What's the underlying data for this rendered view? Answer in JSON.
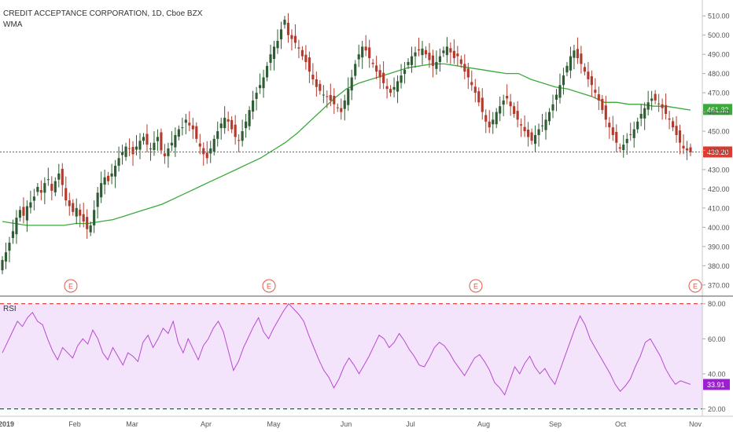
{
  "header": {
    "title": "CREDIT ACCEPTANCE CORPORATION, 1D, Cboe BZX",
    "indicator": "WMA"
  },
  "rsi_pane": {
    "label": "RSI"
  },
  "earnings_marker": "E",
  "colors": {
    "up": "#2e5d34",
    "down": "#b23b2e",
    "wma": "#3aaa3a",
    "rsi_line": "#b84ad3",
    "rsi_fill": "#f3e4fb",
    "last_price_line": "#e03a2e",
    "ob_os_line": "#e0312b",
    "os_line": "#1f4a3a",
    "earnings": "#e05a4a"
  },
  "chart_data": [
    {
      "type": "candlestick",
      "title": "CREDIT ACCEPTANCE CORPORATION, 1D, Cboe BZX",
      "x_tick_labels": [
        "2019",
        "Feb",
        "Mar",
        "Apr",
        "May",
        "Jun",
        "Jul",
        "Aug",
        "Sep",
        "Oct",
        "Nov"
      ],
      "y_tick_labels": [
        "510.00",
        "500.00",
        "490.00",
        "480.00",
        "470.00",
        "460.00",
        "450.00",
        "440.00",
        "430.00",
        "420.00",
        "410.00",
        "400.00",
        "390.00",
        "380.00",
        "370.00"
      ],
      "ylim": [
        365,
        515
      ],
      "last_price": 439.2,
      "last_price_label": "439.20",
      "close_approx": [
        383,
        387,
        392,
        398,
        405,
        409,
        406,
        411,
        413,
        416,
        421,
        418,
        423,
        425,
        419,
        424,
        428,
        422,
        414,
        411,
        408,
        410,
        406,
        403,
        399,
        401,
        409,
        418,
        423,
        426,
        424,
        428,
        432,
        436,
        439,
        442,
        441,
        438,
        442,
        445,
        447,
        443,
        441,
        444,
        447,
        440,
        437,
        441,
        444,
        448,
        451,
        452,
        456,
        453,
        451,
        446,
        442,
        438,
        436,
        441,
        446,
        450,
        454,
        457,
        455,
        451,
        447,
        445,
        450,
        455,
        461,
        466,
        470,
        474,
        478,
        484,
        490,
        494,
        497,
        503,
        508,
        500,
        498,
        496,
        493,
        489,
        486,
        481,
        477,
        473,
        471,
        469,
        468,
        466,
        464,
        462,
        460,
        466,
        472,
        478,
        485,
        490,
        494,
        492,
        488,
        485,
        481,
        478,
        475,
        472,
        470,
        473,
        476,
        479,
        482,
        486,
        489,
        491,
        492,
        493,
        490,
        487,
        484,
        486,
        489,
        492,
        494,
        491,
        488,
        489,
        485,
        481,
        478,
        474,
        470,
        465,
        460,
        455,
        452,
        456,
        460,
        463,
        466,
        467,
        463,
        459,
        456,
        453,
        450,
        447,
        445,
        448,
        451,
        453,
        456,
        460,
        464,
        469,
        474,
        479,
        484,
        489,
        492,
        488,
        485,
        481,
        477,
        474,
        470,
        466,
        461,
        456,
        452,
        448,
        444,
        441,
        443,
        446,
        448,
        451,
        455,
        459,
        462,
        465,
        467,
        466,
        464,
        462,
        459,
        456,
        452,
        448,
        444,
        441,
        440,
        439
      ],
      "series": [
        {
          "name": "WMA",
          "last_value": 461.32,
          "last_value_label": "461.32",
          "values_approx": [
            403,
            402,
            401,
            401,
            401,
            401,
            402,
            402,
            403,
            404,
            406,
            408,
            410,
            412,
            415,
            418,
            421,
            424,
            427,
            430,
            433,
            436,
            440,
            444,
            449,
            455,
            461,
            467,
            472,
            475,
            477,
            479,
            481,
            483,
            484,
            485,
            485,
            484,
            483,
            482,
            481,
            480,
            480,
            477,
            475,
            473,
            472,
            470,
            468,
            465,
            465,
            464,
            464,
            463,
            463,
            462,
            461
          ]
        }
      ],
      "earnings_markers": [
        "Feb",
        "May",
        "Aug",
        "Nov"
      ]
    },
    {
      "type": "line",
      "title": "RSI",
      "y_tick_labels": [
        "80.00",
        "60.00",
        "40.00",
        "20.00"
      ],
      "ylim": [
        18,
        83
      ],
      "overbought": 80,
      "oversold": 20,
      "last_value": 33.91,
      "last_value_label": "33.91",
      "values_approx": [
        52,
        58,
        64,
        70,
        67,
        72,
        75,
        70,
        68,
        60,
        53,
        48,
        55,
        52,
        49,
        56,
        60,
        57,
        65,
        60,
        52,
        48,
        55,
        50,
        45,
        52,
        50,
        47,
        58,
        62,
        55,
        60,
        66,
        63,
        70,
        58,
        52,
        60,
        54,
        48,
        56,
        60,
        66,
        70,
        64,
        53,
        42,
        47,
        55,
        61,
        67,
        72,
        64,
        60,
        66,
        71,
        76,
        80,
        77,
        74,
        70,
        62,
        55,
        48,
        42,
        38,
        32,
        37,
        44,
        49,
        45,
        40,
        45,
        50,
        56,
        62,
        60,
        55,
        58,
        63,
        59,
        54,
        50,
        45,
        44,
        49,
        55,
        58,
        56,
        52,
        47,
        43,
        39,
        44,
        49,
        51,
        47,
        42,
        35,
        32,
        28,
        36,
        44,
        40,
        46,
        50,
        44,
        40,
        43,
        38,
        34,
        42,
        50,
        58,
        66,
        73,
        68,
        60,
        55,
        50,
        45,
        40,
        34,
        30,
        33,
        37,
        44,
        50,
        58,
        60,
        55,
        50,
        43,
        38,
        34,
        36,
        35,
        34
      ]
    }
  ],
  "x_axis_labels": [
    "2019",
    "Feb",
    "Mar",
    "Apr",
    "May",
    "Jun",
    "Jul",
    "Aug",
    "Sep",
    "Oct",
    "Nov"
  ]
}
